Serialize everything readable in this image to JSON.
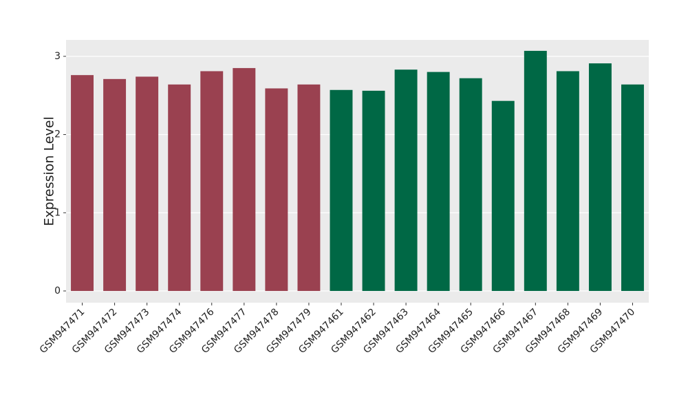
{
  "chart_data": {
    "type": "bar",
    "y_label": "Expression Level",
    "categories": [
      "GSM947471",
      "GSM947472",
      "GSM947473",
      "GSM947474",
      "GSM947476",
      "GSM947477",
      "GSM947478",
      "GSM947479",
      "GSM947461",
      "GSM947462",
      "GSM947463",
      "GSM947464",
      "GSM947465",
      "GSM947466",
      "GSM947467",
      "GSM947468",
      "GSM947469",
      "GSM947470"
    ],
    "values": [
      2.76,
      2.71,
      2.74,
      2.64,
      2.81,
      2.85,
      2.59,
      2.64,
      2.57,
      2.56,
      2.83,
      2.8,
      2.72,
      2.43,
      3.07,
      2.81,
      2.91,
      2.64
    ],
    "colors": [
      "#9a4150",
      "#9a4150",
      "#9a4150",
      "#9a4150",
      "#9a4150",
      "#9a4150",
      "#9a4150",
      "#9a4150",
      "#006845",
      "#006845",
      "#006845",
      "#006845",
      "#006845",
      "#006845",
      "#006845",
      "#006845",
      "#006845",
      "#006845"
    ],
    "ylim": [
      -0.15,
      3.21
    ],
    "yticks": [
      0,
      1,
      2,
      3
    ],
    "grid": true
  }
}
